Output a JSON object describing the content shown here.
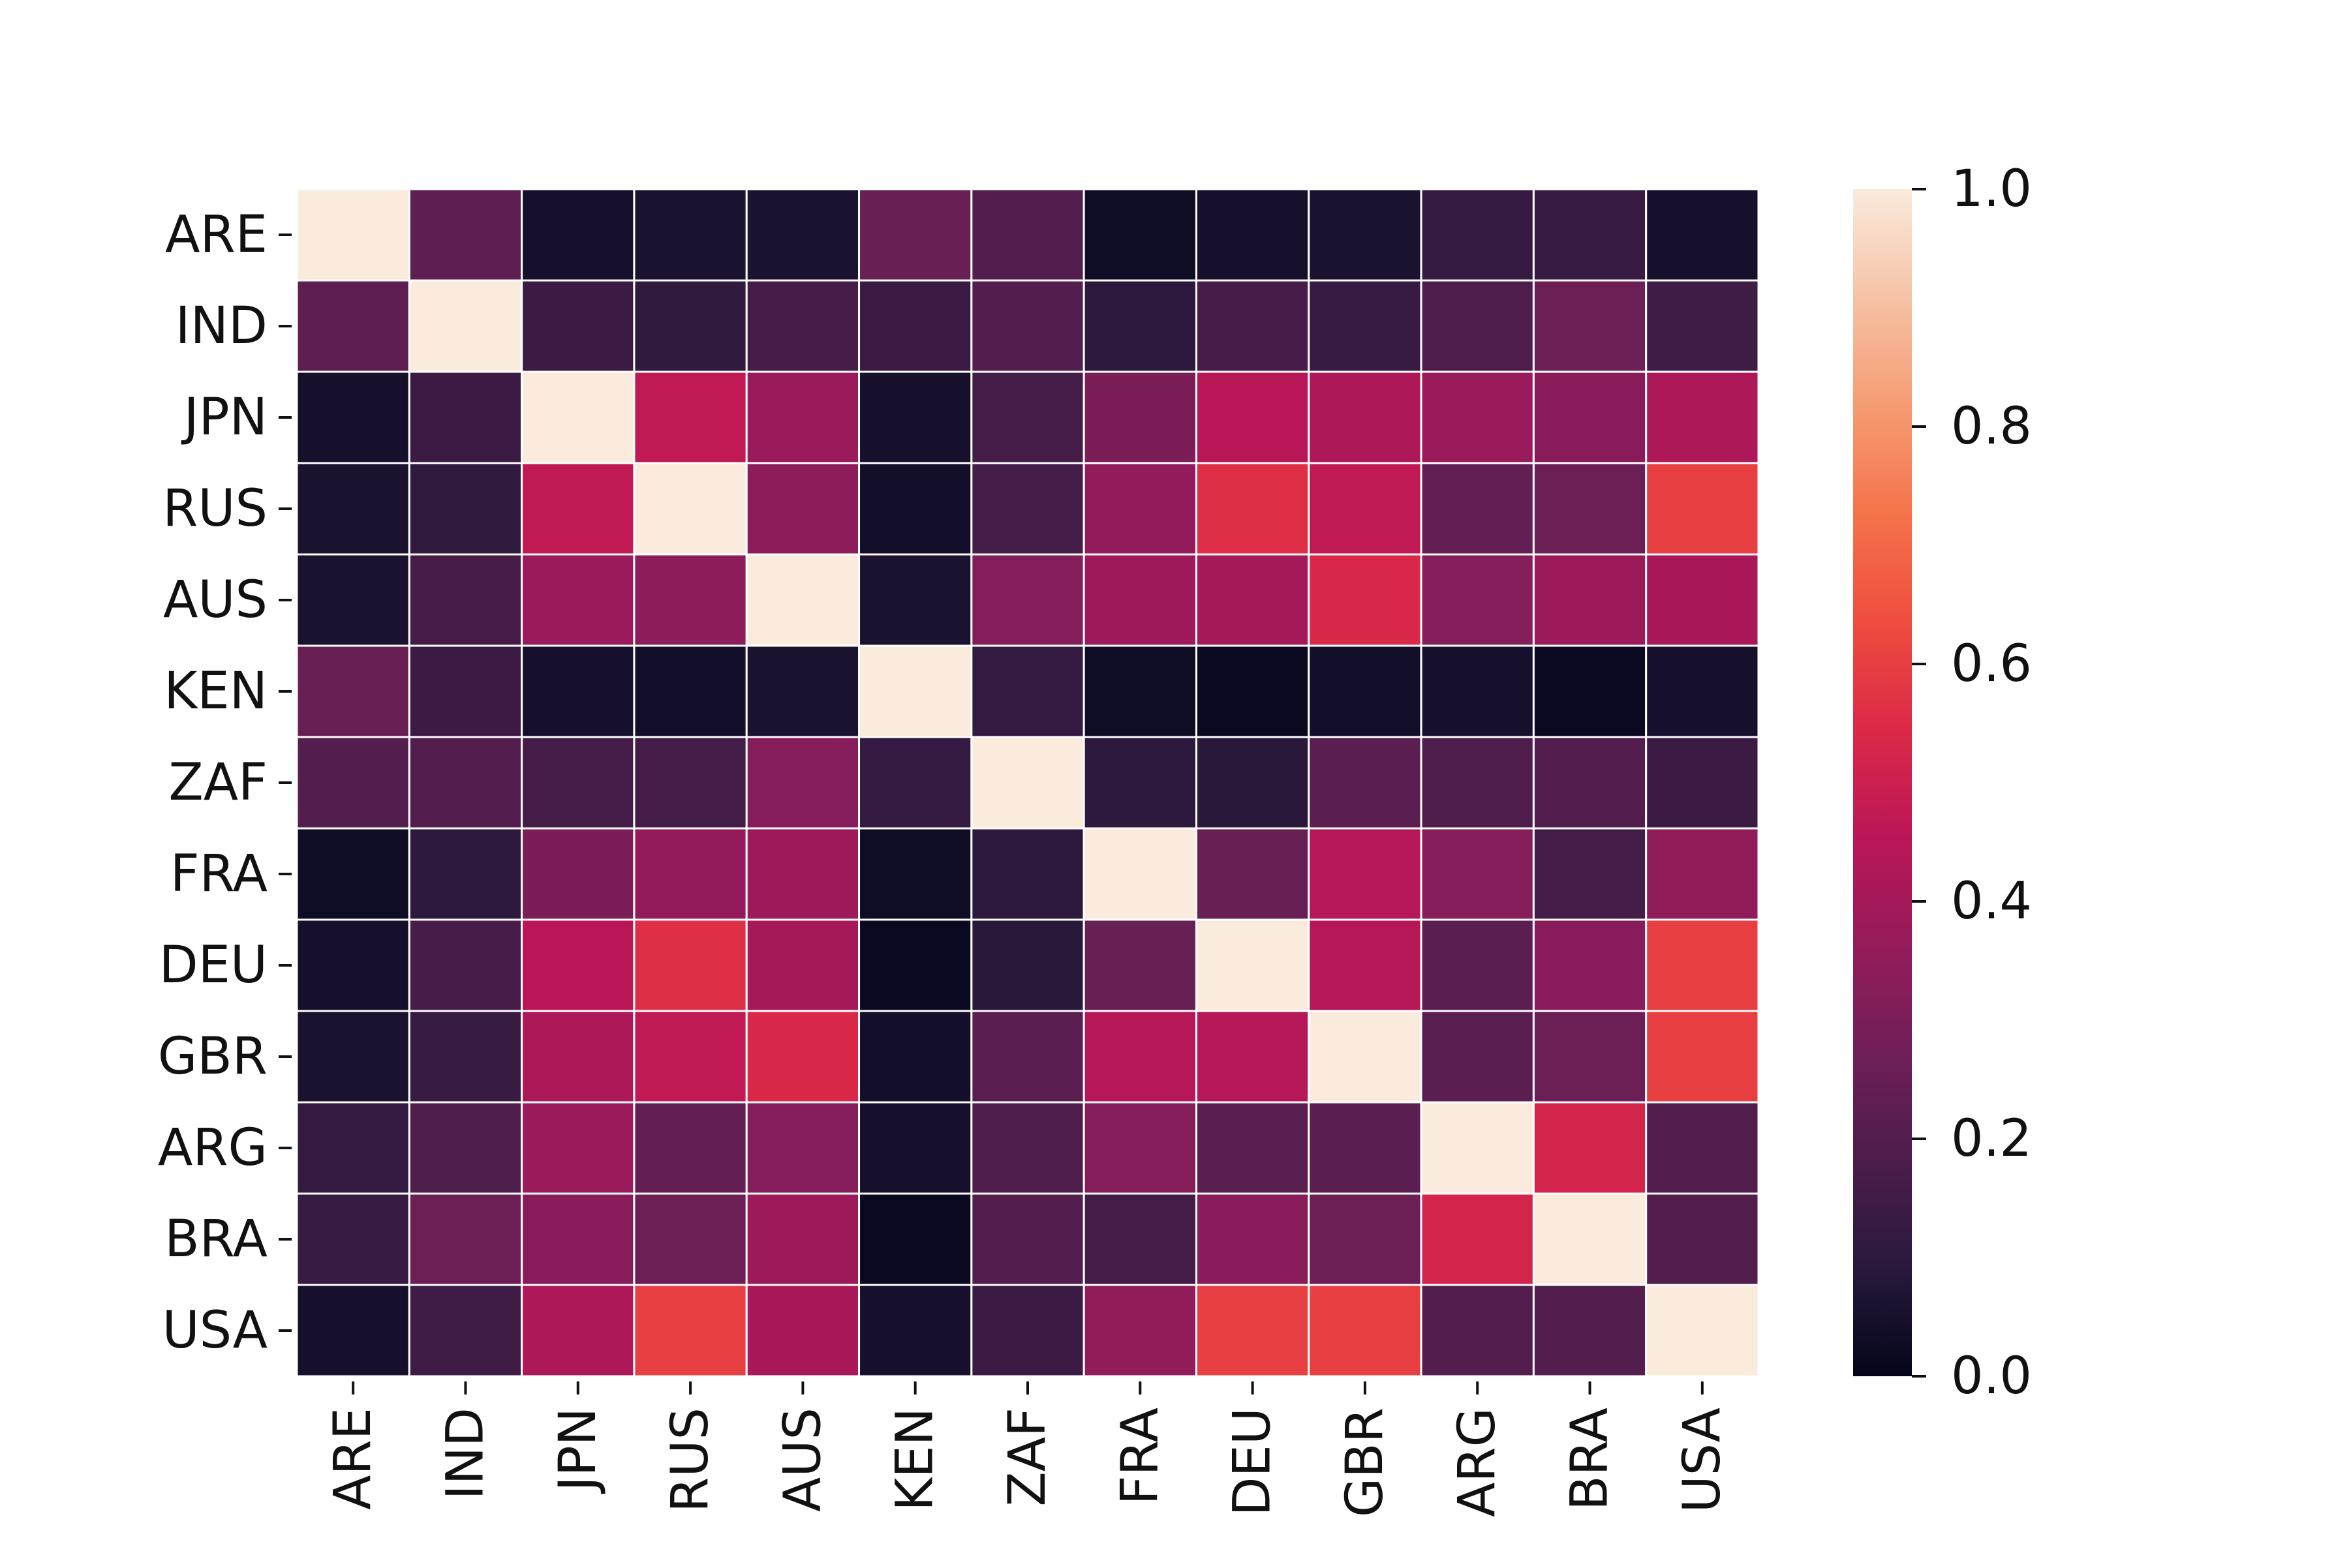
{
  "chart_data": {
    "type": "heatmap",
    "title": "",
    "xlabel": "",
    "ylabel": "",
    "row_labels": [
      "ARE",
      "IND",
      "JPN",
      "RUS",
      "AUS",
      "KEN",
      "ZAF",
      "FRA",
      "DEU",
      "GBR",
      "ARG",
      "BRA",
      "USA"
    ],
    "col_labels": [
      "ARE",
      "IND",
      "JPN",
      "RUS",
      "AUS",
      "KEN",
      "ZAF",
      "FRA",
      "DEU",
      "GBR",
      "ARG",
      "BRA",
      "USA"
    ],
    "values": [
      [
        1.0,
        0.23,
        0.05,
        0.06,
        0.06,
        0.25,
        0.2,
        0.03,
        0.05,
        0.06,
        0.12,
        0.13,
        0.05
      ],
      [
        0.23,
        1.0,
        0.14,
        0.11,
        0.17,
        0.14,
        0.2,
        0.1,
        0.17,
        0.13,
        0.19,
        0.26,
        0.15
      ],
      [
        0.05,
        0.14,
        1.0,
        0.47,
        0.37,
        0.05,
        0.16,
        0.3,
        0.45,
        0.42,
        0.37,
        0.33,
        0.42
      ],
      [
        0.06,
        0.11,
        0.47,
        1.0,
        0.34,
        0.04,
        0.16,
        0.36,
        0.56,
        0.47,
        0.24,
        0.26,
        0.6
      ],
      [
        0.06,
        0.17,
        0.37,
        0.34,
        1.0,
        0.06,
        0.32,
        0.38,
        0.4,
        0.54,
        0.32,
        0.38,
        0.41
      ],
      [
        0.25,
        0.14,
        0.05,
        0.04,
        0.06,
        1.0,
        0.12,
        0.03,
        0.02,
        0.04,
        0.05,
        0.02,
        0.05
      ],
      [
        0.2,
        0.2,
        0.16,
        0.16,
        0.32,
        0.12,
        1.0,
        0.1,
        0.09,
        0.22,
        0.19,
        0.2,
        0.14
      ],
      [
        0.03,
        0.1,
        0.3,
        0.36,
        0.38,
        0.03,
        0.1,
        1.0,
        0.25,
        0.44,
        0.32,
        0.16,
        0.35
      ],
      [
        0.05,
        0.17,
        0.45,
        0.56,
        0.4,
        0.02,
        0.09,
        0.25,
        1.0,
        0.44,
        0.22,
        0.33,
        0.6
      ],
      [
        0.06,
        0.13,
        0.42,
        0.47,
        0.54,
        0.04,
        0.22,
        0.44,
        0.44,
        1.0,
        0.22,
        0.26,
        0.6
      ],
      [
        0.12,
        0.19,
        0.37,
        0.24,
        0.32,
        0.05,
        0.19,
        0.32,
        0.22,
        0.22,
        1.0,
        0.52,
        0.2
      ],
      [
        0.13,
        0.26,
        0.33,
        0.26,
        0.38,
        0.02,
        0.2,
        0.16,
        0.33,
        0.26,
        0.52,
        1.0,
        0.2
      ],
      [
        0.05,
        0.15,
        0.42,
        0.6,
        0.41,
        0.05,
        0.14,
        0.35,
        0.6,
        0.6,
        0.2,
        0.2,
        1.0
      ]
    ],
    "vmin": 0.0,
    "vmax": 1.0,
    "colormap": "rocket",
    "colormap_stops": [
      "#03051a",
      "#28193b",
      "#4c1d4b",
      "#701f57",
      "#961b5b",
      "#bb1656",
      "#dc2947",
      "#ef4d3e",
      "#f5744b",
      "#f69c73",
      "#f6c2a6",
      "#faebdd"
    ],
    "cell_separator_color": "#ffffff",
    "colorbar": {
      "ticks": [
        0.0,
        0.2,
        0.4,
        0.6,
        0.8,
        1.0
      ],
      "tick_labels": [
        "0.0",
        "0.2",
        "0.4",
        "0.6",
        "0.8",
        "1.0"
      ],
      "position": "right"
    },
    "grid": false
  }
}
